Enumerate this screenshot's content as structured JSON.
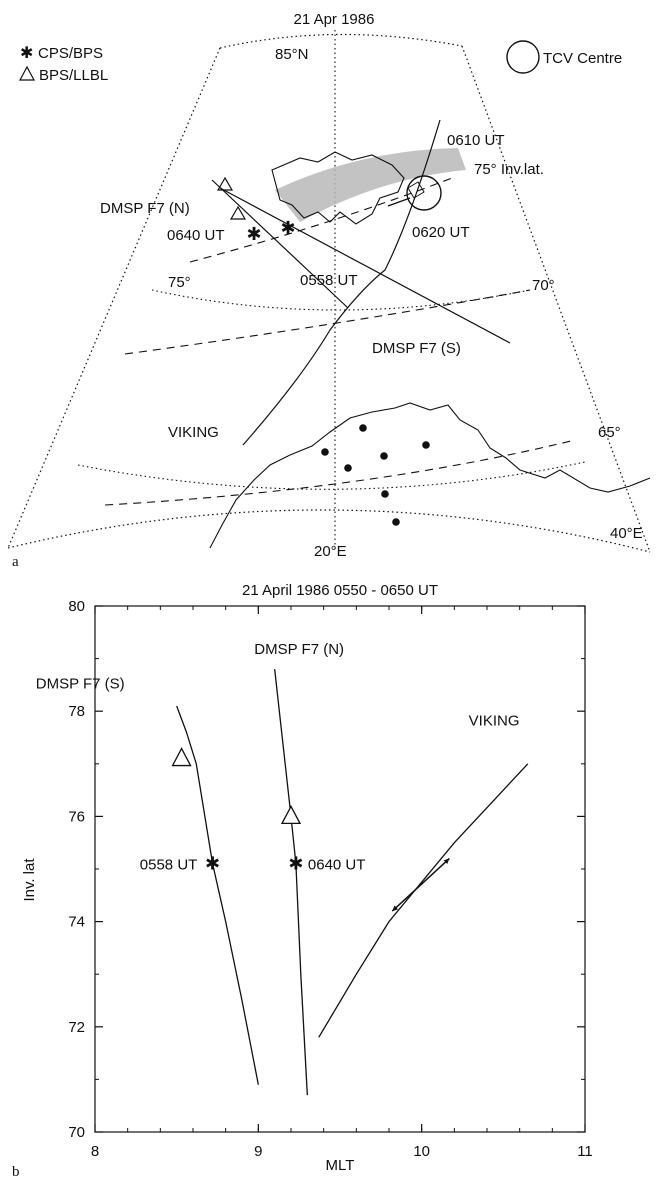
{
  "panel_a": {
    "panel_label": "a",
    "title": "21 Apr 1986",
    "legend": {
      "cps_bps": "CPS/BPS",
      "bps_llbl": "BPS/LLBL",
      "tcv_centre": "TCV Centre",
      "cps_symbol": "✱",
      "bps_symbol": "△"
    },
    "grid_labels": {
      "lat_85": "85°N",
      "lat_75": "75°",
      "lat_70": "70°",
      "lat_65": "65°",
      "lon_20": "20°E",
      "lon_40": "40°E"
    },
    "annotations": {
      "t0610": "0610 UT",
      "inv75": "75° Inv.lat.",
      "t0620": "0620 UT",
      "dmsp_n": "DMSP F7 (N)",
      "t0640": "0640 UT",
      "t0558": "0558 UT",
      "dmsp_s": "DMSP F7 (S)",
      "viking": "VIKING"
    },
    "colors": {
      "ink": "#111111",
      "shade": "#b9b9b9"
    }
  },
  "chart_data": {
    "type": "line",
    "panel_label": "b",
    "title": "21 April 1986  0550 - 0650 UT",
    "xlabel": "MLT",
    "ylabel": "Inv. lat",
    "xlim": [
      8,
      11
    ],
    "ylim": [
      70,
      80
    ],
    "xticks": [
      8,
      9,
      10,
      11
    ],
    "yticks": [
      70,
      72,
      74,
      76,
      78,
      80
    ],
    "grid": false,
    "series": [
      {
        "name": "DMSP F7 (S)",
        "x": [
          8.5,
          8.56,
          8.62,
          8.72,
          8.8,
          8.9,
          9.0
        ],
        "y": [
          78.1,
          77.6,
          77.0,
          75.1,
          74.0,
          72.5,
          70.9
        ]
      },
      {
        "name": "DMSP F7 (N)",
        "x": [
          9.1,
          9.2,
          9.23,
          9.26,
          9.3
        ],
        "y": [
          78.8,
          76.0,
          75.1,
          73.0,
          70.7
        ]
      },
      {
        "name": "VIKING",
        "x": [
          9.37,
          9.6,
          9.8,
          10.2,
          10.65
        ],
        "y": [
          71.8,
          73.0,
          74.0,
          75.5,
          77.0
        ]
      }
    ],
    "markers": [
      {
        "type": "triangle",
        "x": 8.53,
        "y": 77.1
      },
      {
        "type": "triangle",
        "x": 9.2,
        "y": 76.0
      },
      {
        "type": "asterisk",
        "x": 8.72,
        "y": 75.1
      },
      {
        "type": "asterisk",
        "x": 9.23,
        "y": 75.1
      }
    ],
    "tcv_path": {
      "x_start": 9.82,
      "y_start": 74.2,
      "x_end": 10.17,
      "y_end": 75.2
    },
    "annotations": [
      {
        "text": "DMSP F7 (S)",
        "x": 8.5,
        "y": 78.2
      },
      {
        "text": "DMSP F7 (N)",
        "x": 9.25,
        "y": 78.9
      },
      {
        "text": "VIKING",
        "x": 10.3,
        "y": 77.5
      },
      {
        "text": "0558 UT",
        "x": 8.7,
        "y": 75.1
      },
      {
        "text": "0640 UT",
        "x": 9.23,
        "y": 75.1
      }
    ]
  }
}
